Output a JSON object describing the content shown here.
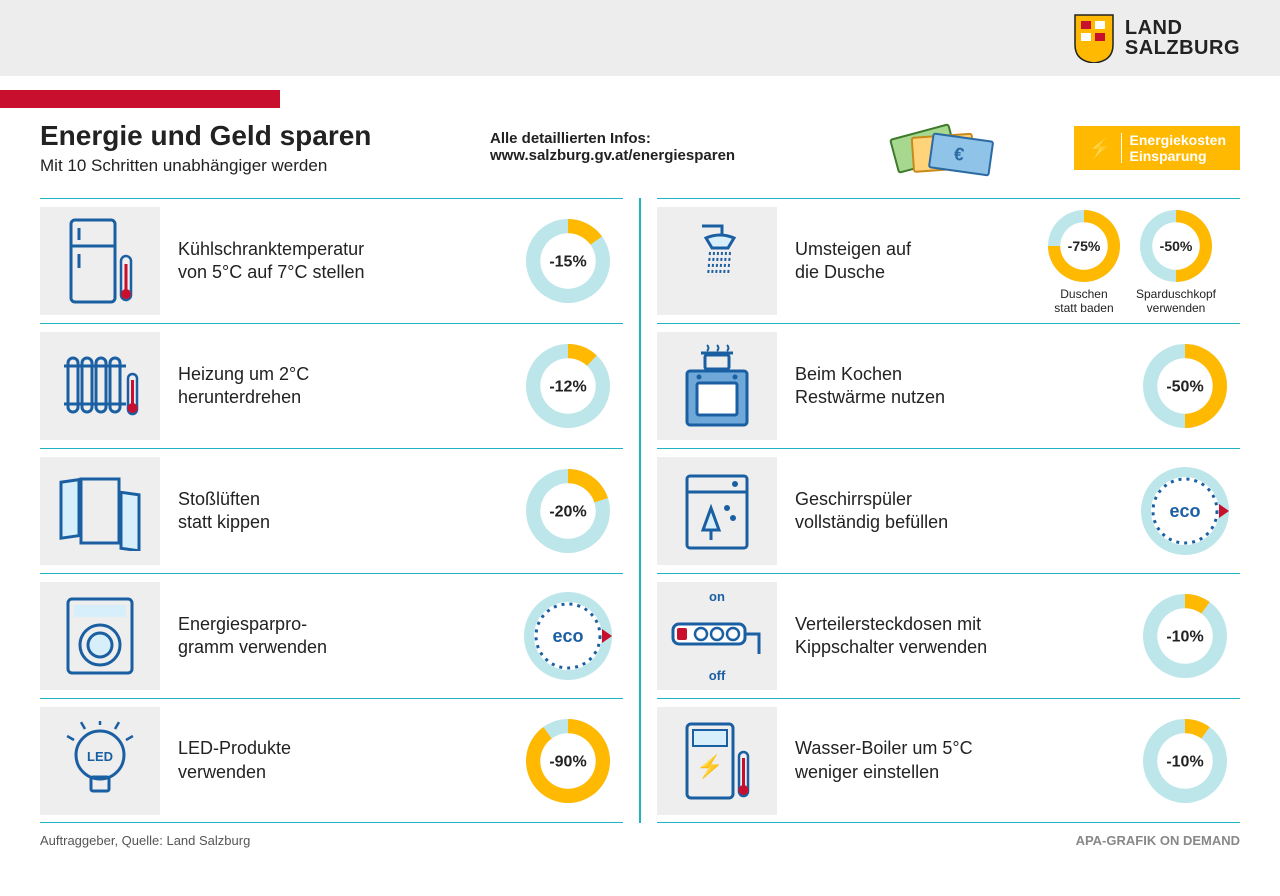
{
  "brand": {
    "line1": "LAND",
    "line2": "SALZBURG"
  },
  "title": "Energie und Geld sparen",
  "subtitle": "Mit 10 Schritten unabhängiger werden",
  "info_label": "Alle detaillierten Infos:",
  "info_url": "www.salzburg.gv.at/energiesparen",
  "badge": {
    "line1": "Energiekosten",
    "line2": "Einsparung"
  },
  "colors": {
    "teal": "#1fb4c4",
    "teal_light": "#bde6ea",
    "yellow": "#ffb900",
    "red": "#c8102e",
    "blue": "#1b5fa3",
    "grey_bg": "#eeeeee"
  },
  "donut": {
    "outer_r": 42,
    "inner_r": 28,
    "text_size": 16,
    "text_weight": 700
  },
  "rows_left": [
    {
      "id": "fridge",
      "label": "Kühlschranktemperatur\nvon 5°C auf 7°C stellen",
      "donut": {
        "pct": 15,
        "text": "-15%"
      }
    },
    {
      "id": "heating",
      "label": "Heizung um 2°C\nherunterdrehen",
      "donut": {
        "pct": 12,
        "text": "-12%"
      }
    },
    {
      "id": "airing",
      "label": "Stoßlüften\nstatt kippen",
      "donut": {
        "pct": 20,
        "text": "-20%"
      }
    },
    {
      "id": "eco-program",
      "label": "Energiesparpro-\ngramm verwenden",
      "eco": true
    },
    {
      "id": "led",
      "label": "LED-Produkte\nverwenden",
      "donut": {
        "pct": 90,
        "text": "-90%"
      }
    }
  ],
  "rows_right": [
    {
      "id": "shower",
      "label": "Umsteigen auf\ndie Dusche",
      "donuts": [
        {
          "pct": 75,
          "text": "-75%",
          "caption": "Duschen\nstatt baden"
        },
        {
          "pct": 50,
          "text": "-50%",
          "caption": "Sparduschkopf\nverwenden"
        }
      ]
    },
    {
      "id": "cooking",
      "label": "Beim Kochen\nRestwärme nutzen",
      "donut": {
        "pct": 50,
        "text": "-50%"
      }
    },
    {
      "id": "dishwasher",
      "label": "Geschirrspüler\nvollständig befüllen",
      "eco": true
    },
    {
      "id": "powerstrip",
      "label": "Verteilersteckdosen mit\nKippschalter verwenden",
      "donut": {
        "pct": 10,
        "text": "-10%"
      },
      "on_off": true
    },
    {
      "id": "boiler",
      "label": "Wasser-Boiler um 5°C\nweniger einstellen",
      "donut": {
        "pct": 10,
        "text": "-10%"
      }
    }
  ],
  "footer_left": "Auftraggeber, Quelle: Land Salzburg",
  "footer_right": "APA-GRAFIK ON DEMAND",
  "eco_label": "eco",
  "on_label": "on",
  "off_label": "off"
}
